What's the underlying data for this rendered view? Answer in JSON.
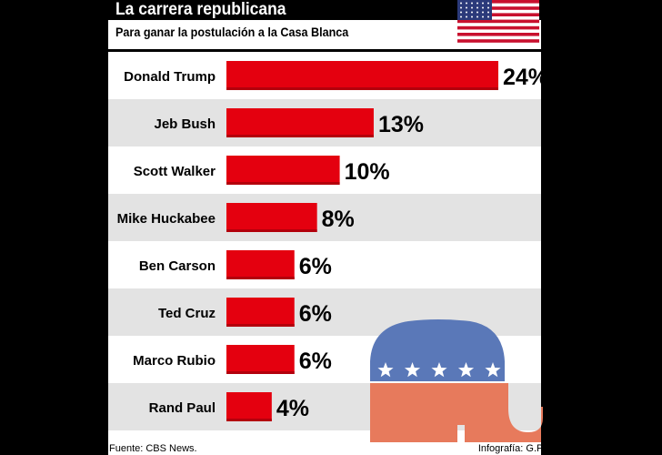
{
  "header": {
    "title": "La carrera republicana",
    "subtitle": "Para ganar la postulación a la Casa Blanca"
  },
  "footer": {
    "source": "Fuente: CBS News.",
    "credit": "Infografía: G.P."
  },
  "decor": {
    "flag": "us-flag-icon",
    "logo": "republican-elephant-logo"
  },
  "colors": {
    "bar": "#e4000f",
    "bar_dark": "#b3000c",
    "stripe": "#e3e3e3",
    "elephant_blue": "#5a78b8",
    "elephant_red": "#e77a5c"
  },
  "chart_data": {
    "type": "bar",
    "orientation": "horizontal",
    "categories": [
      "Donald Trump",
      "Jeb Bush",
      "Scott Walker",
      "Mike Huckabee",
      "Ben Carson",
      "Ted Cruz",
      "Marco Rubio",
      "Rand Paul"
    ],
    "values": [
      24,
      13,
      10,
      8,
      6,
      6,
      6,
      4
    ],
    "labels": [
      "24%",
      "13%",
      "10%",
      "8%",
      "6%",
      "6%",
      "6%",
      "4%"
    ],
    "unit": "%",
    "xlim": [
      0,
      24
    ]
  }
}
